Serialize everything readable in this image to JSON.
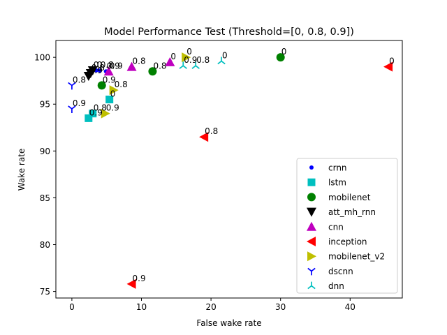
{
  "chart_data": {
    "type": "scatter",
    "title": "Model Performance Test (Threshold=[0, 0.8, 0.9])",
    "xlabel": "False wake rate",
    "ylabel": "Wake rate",
    "xlim": [
      -2.3,
      47.5
    ],
    "ylim": [
      74.3,
      101.8
    ],
    "xticks": [
      0,
      10,
      20,
      30,
      40
    ],
    "yticks": [
      75,
      80,
      85,
      90,
      95,
      100
    ],
    "legend_position": "lower right",
    "grid": false,
    "series": [
      {
        "name": "crnn",
        "marker": "circle-small",
        "color": "#0000ff",
        "points": [
          {
            "x": 3.5,
            "y": 98.6,
            "label": "0"
          },
          {
            "x": 4.0,
            "y": 98.6,
            "label": "0.8"
          },
          {
            "x": 4.9,
            "y": 98.5,
            "label": "0.9"
          }
        ]
      },
      {
        "name": "lstm",
        "marker": "square",
        "color": "#00bfbf",
        "points": [
          {
            "x": 5.4,
            "y": 95.5,
            "label": "0"
          },
          {
            "x": 3.0,
            "y": 94.0,
            "label": "0.8"
          },
          {
            "x": 2.4,
            "y": 93.5,
            "label": "0.9"
          }
        ]
      },
      {
        "name": "mobilenet",
        "marker": "circle",
        "color": "#008000",
        "points": [
          {
            "x": 30.0,
            "y": 100.0,
            "label": "0"
          },
          {
            "x": 11.6,
            "y": 98.5,
            "label": "0.8"
          },
          {
            "x": 4.3,
            "y": 97.0,
            "label": "0.9"
          }
        ]
      },
      {
        "name": "att_mh_rnn",
        "marker": "triangle-down",
        "color": "#000000",
        "points": [
          {
            "x": 3.0,
            "y": 98.6,
            "label": "0"
          },
          {
            "x": 2.7,
            "y": 98.3,
            "label": "0.8"
          },
          {
            "x": 2.4,
            "y": 98.0,
            "label": "0.9"
          }
        ]
      },
      {
        "name": "cnn",
        "marker": "triangle-up",
        "color": "#bf00bf",
        "points": [
          {
            "x": 14.1,
            "y": 99.5,
            "label": "0"
          },
          {
            "x": 8.6,
            "y": 99.0,
            "label": "0.8"
          },
          {
            "x": 5.3,
            "y": 98.5,
            "label": "0.9"
          }
        ]
      },
      {
        "name": "inception",
        "marker": "triangle-left",
        "color": "#ff0000",
        "points": [
          {
            "x": 45.5,
            "y": 99.0,
            "label": "0"
          },
          {
            "x": 19.0,
            "y": 91.5,
            "label": "0.8"
          },
          {
            "x": 8.6,
            "y": 75.8,
            "label": "0.9"
          }
        ]
      },
      {
        "name": "mobilenet_v2",
        "marker": "triangle-right",
        "color": "#bfbf00",
        "points": [
          {
            "x": 16.4,
            "y": 100.0,
            "label": "0"
          },
          {
            "x": 6.0,
            "y": 96.5,
            "label": "0.8"
          },
          {
            "x": 4.8,
            "y": 94.0,
            "label": "0.9"
          }
        ]
      },
      {
        "name": "dscnn",
        "marker": "tri-down",
        "color": "#0000ff",
        "points": [
          {
            "x": 0.0,
            "y": 97.0,
            "label": "0.8"
          },
          {
            "x": 0.0,
            "y": 94.5,
            "label": "0.9"
          }
        ]
      },
      {
        "name": "dnn",
        "marker": "tri-up",
        "color": "#00bfbf",
        "points": [
          {
            "x": 21.5,
            "y": 99.6,
            "label": "0"
          },
          {
            "x": 17.8,
            "y": 99.1,
            "label": "0.8"
          },
          {
            "x": 16.0,
            "y": 99.1,
            "label": "0.9"
          }
        ]
      }
    ]
  }
}
